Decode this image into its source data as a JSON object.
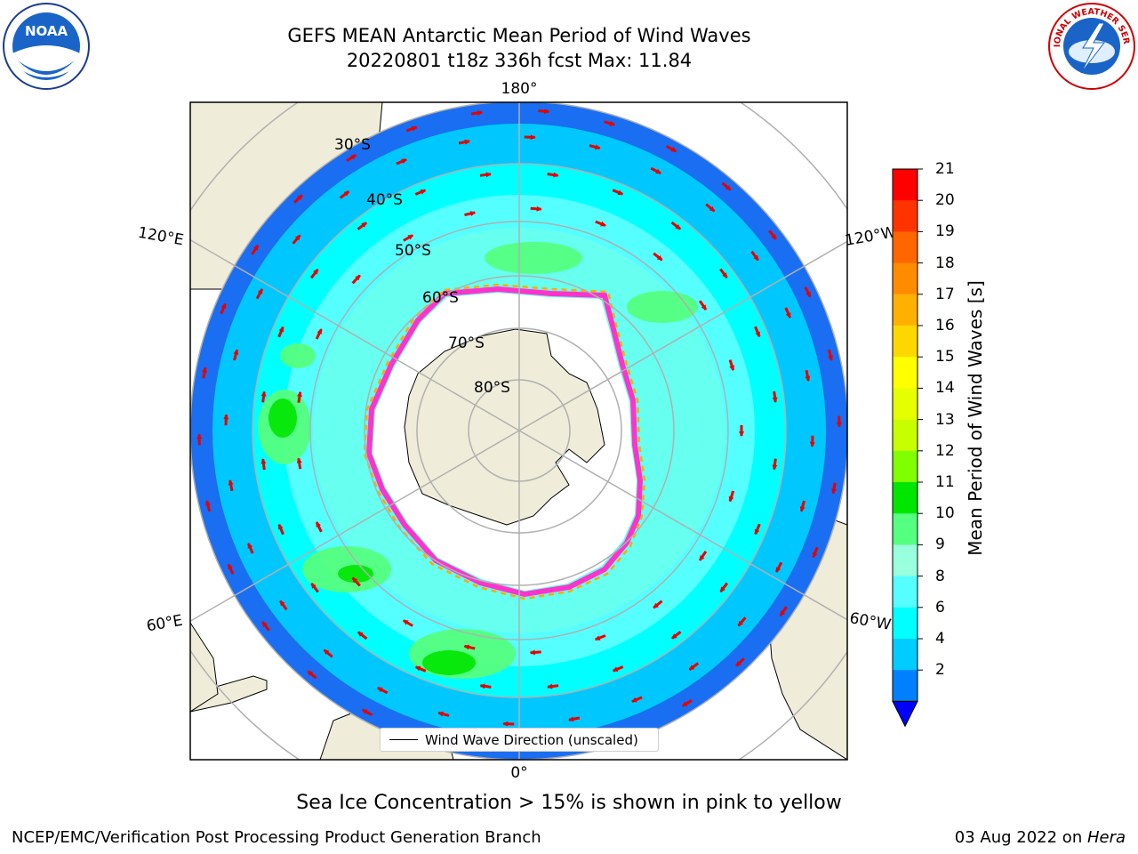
{
  "title": {
    "line1": "GEFS MEAN Antarctic Mean Period of Wind Waves",
    "line2": "20220801 t18z 336h fcst   Max: 11.84"
  },
  "map": {
    "projection": "south-polar-stereographic",
    "longitude_labels": [
      "180°",
      "120°E",
      "120°W",
      "60°E",
      "60°W",
      "0°"
    ],
    "latitude_labels": [
      "30°S",
      "40°S",
      "50°S",
      "60°S",
      "70°S",
      "80°S"
    ],
    "legend_label": "Wind Wave Direction (unscaled)",
    "arrow_color": "#e60000",
    "land_color": "#efedd9",
    "sea_ice_colors": [
      "#ff33cc",
      "#ffaa00",
      "#ffff33"
    ]
  },
  "colorbar": {
    "title": "Mean Period of Wind Waves [s]",
    "ticks": [
      "21",
      "20",
      "19",
      "18",
      "17",
      "16",
      "15",
      "14",
      "13",
      "12",
      "11",
      "10",
      "9",
      "8",
      "6",
      "4",
      "2"
    ],
    "colors": [
      "#ff0000",
      "#ff3300",
      "#ff6600",
      "#ff8c00",
      "#ffb000",
      "#ffd700",
      "#ffff00",
      "#e6ff00",
      "#c8ff00",
      "#80ff00",
      "#00e600",
      "#55ff80",
      "#99ffdd",
      "#55ffff",
      "#00ffff",
      "#00ccff",
      "#0080ff"
    ],
    "under_color": "#0000ff"
  },
  "caption": "Sea Ice Concentration > 15% is shown in pink to yellow",
  "footer": {
    "left": "NCEP/EMC/Verification Post Processing Product Generation Branch",
    "right_date": "03 Aug 2022 on ",
    "right_machine": "Hera"
  },
  "logos": {
    "left": "NOAA",
    "right": "NATIONAL WEATHER SERVICE"
  }
}
